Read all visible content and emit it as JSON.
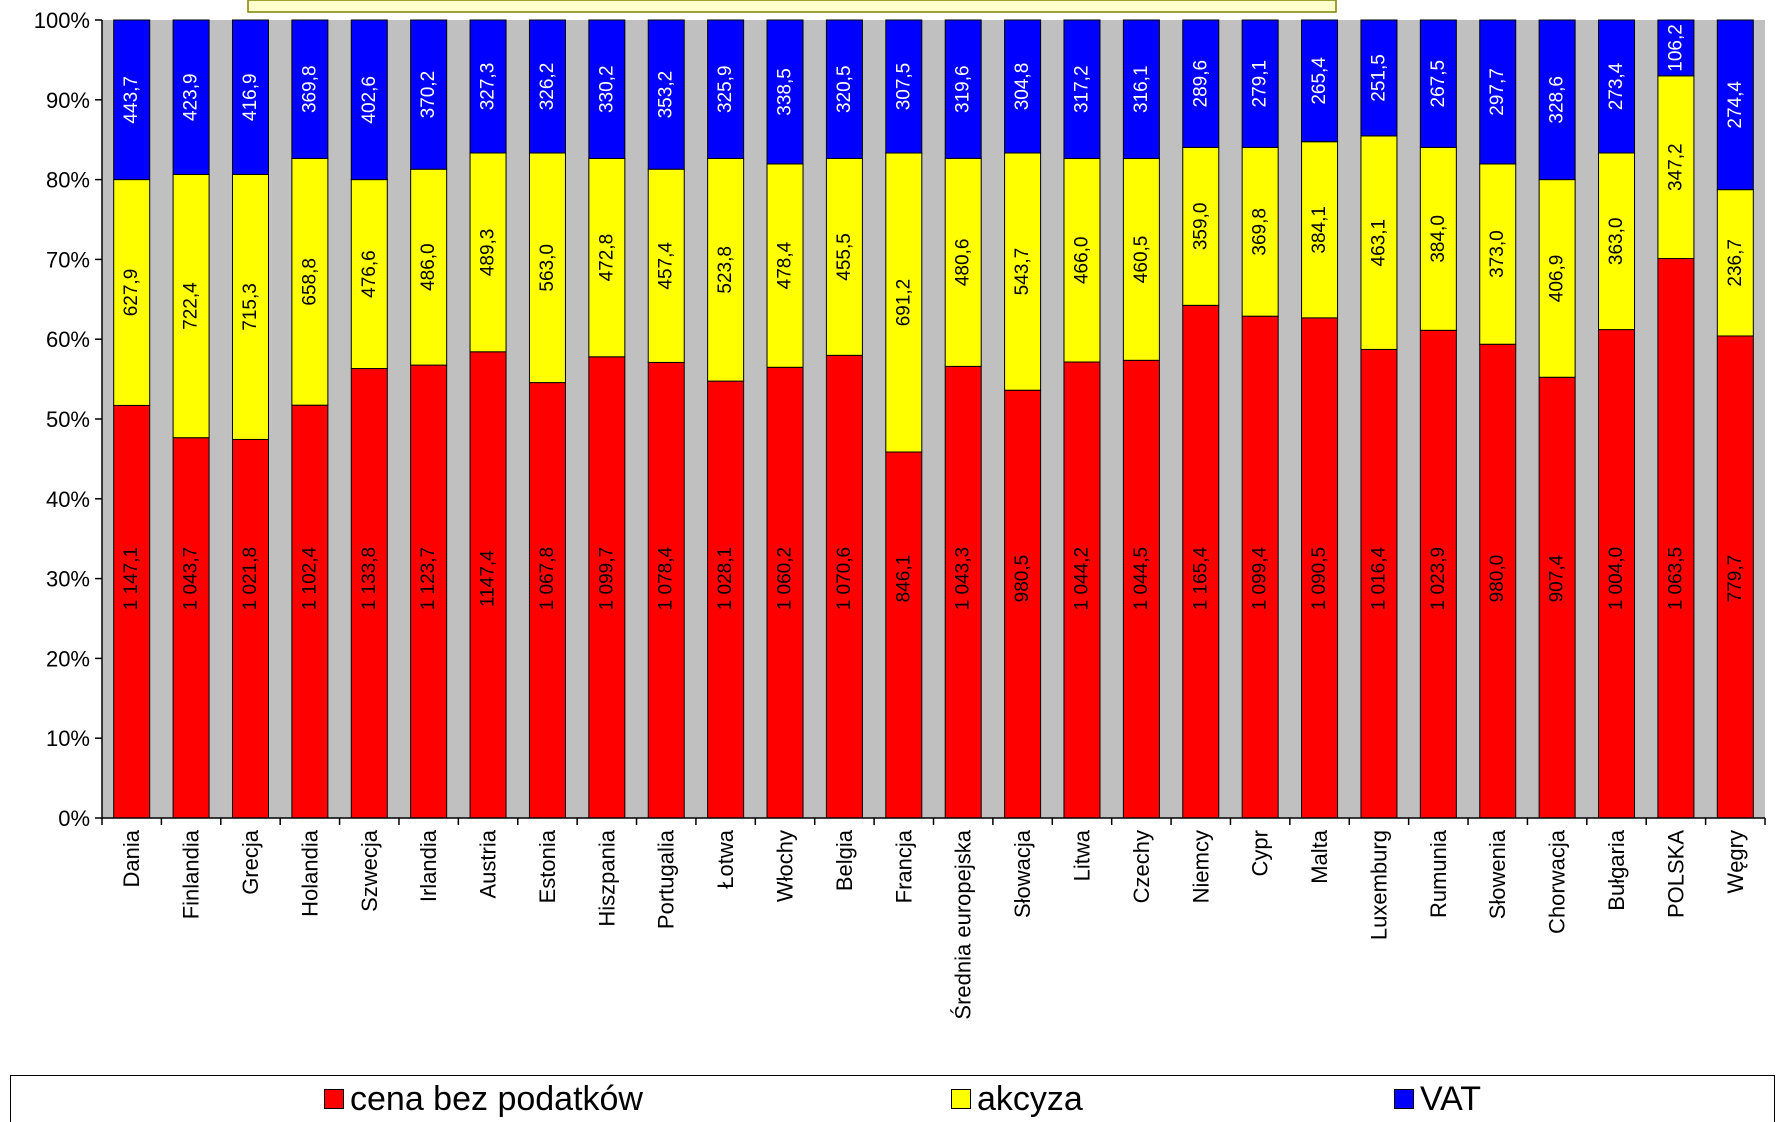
{
  "chart_data": {
    "type": "bar",
    "stacked": true,
    "normalized": "percent",
    "categories": [
      "Dania",
      "Finlandia",
      "Grecja",
      "Holandia",
      "Szwecja",
      "Irlandia",
      "Austria",
      "Estonia",
      "Hiszpania",
      "Portugalia",
      "Łotwa",
      "Włochy",
      "Belgia",
      "Francja",
      "Średnia europejska",
      "Słowacja",
      "Litwa",
      "Czechy",
      "Niemcy",
      "Cypr",
      "Malta",
      "Luxemburg",
      "Rumunia",
      "Słowenia",
      "Chorwacja",
      "Bułgaria",
      "POLSKA",
      "Węgry"
    ],
    "series": [
      {
        "name": "cena bez podatków",
        "color": "#ff0000",
        "values": [
          1147.1,
          1043.7,
          1021.8,
          1102.4,
          1133.8,
          1123.7,
          1147.4,
          1067.8,
          1099.7,
          1078.4,
          1028.1,
          1060.2,
          1070.6,
          846.1,
          1043.3,
          980.5,
          1044.2,
          1044.5,
          1165.4,
          1099.4,
          1090.5,
          1016.4,
          1023.9,
          980.0,
          907.4,
          1004.0,
          1063.5,
          779.7
        ],
        "labels": [
          "1 147,1",
          "1 043,7",
          "1 021,8",
          "1 102,4",
          "1 133,8",
          "1 123,7",
          "1147,4",
          "1 067,8",
          "1 099,7",
          "1 078,4",
          "1 028,1",
          "1 060,2",
          "1 070,6",
          "846,1",
          "1 043,3",
          "980,5",
          "1 044,2",
          "1 044,5",
          "1 165,4",
          "1 099,4",
          "1 090,5",
          "1 016,4",
          "1 023,9",
          "980,0",
          "907,4",
          "1 004,0",
          "1 063,5",
          "779,7"
        ]
      },
      {
        "name": "akcyza",
        "color": "#ffff00",
        "values": [
          627.9,
          722.4,
          715.3,
          658.8,
          476.6,
          486.0,
          489.3,
          563.0,
          472.8,
          457.4,
          523.8,
          478.4,
          455.5,
          691.2,
          480.6,
          543.7,
          466.0,
          460.5,
          359.0,
          369.8,
          384.1,
          463.1,
          384.0,
          373.0,
          406.9,
          363.0,
          347.2,
          236.7
        ],
        "labels": [
          "627,9",
          "722,4",
          "715,3",
          "658,8",
          "476,6",
          "486,0",
          "489,3",
          "563,0",
          "472,8",
          "457,4",
          "523,8",
          "478,4",
          "455,5",
          "691,2",
          "480,6",
          "543,7",
          "466,0",
          "460,5",
          "359,0",
          "369,8",
          "384,1",
          "463,1",
          "384,0",
          "373,0",
          "406,9",
          "363,0",
          "347,2",
          "236,7"
        ]
      },
      {
        "name": "VAT",
        "color": "#0000ff",
        "values": [
          443.7,
          423.9,
          416.9,
          369.8,
          402.6,
          370.2,
          327.3,
          326.2,
          330.2,
          353.2,
          325.9,
          338.5,
          320.5,
          307.5,
          319.6,
          304.8,
          317.2,
          316.1,
          289.6,
          279.1,
          265.4,
          251.5,
          267.5,
          297.7,
          328.6,
          273.4,
          106.2,
          274.4
        ],
        "labels": [
          "443,7",
          "423,9",
          "416,9",
          "369,8",
          "402,6",
          "370,2",
          "327,3",
          "326,2",
          "330,2",
          "353,2",
          "325,9",
          "338,5",
          "320,5",
          "307,5",
          "319,6",
          "304,8",
          "317,2",
          "316,1",
          "289,6",
          "279,1",
          "265,4",
          "251,5",
          "267,5",
          "297,7",
          "328,6",
          "273,4",
          "106,2",
          "274,4"
        ]
      }
    ],
    "y_ticks": [
      "0%",
      "10%",
      "20%",
      "30%",
      "40%",
      "50%",
      "60%",
      "70%",
      "80%",
      "90%",
      "100%"
    ],
    "ylim": [
      0,
      100
    ],
    "grid": false,
    "plot_background": "#c0c0c0",
    "legend_position": "bottom"
  },
  "legend": {
    "items": [
      {
        "label": "cena bez podatków",
        "color": "#ff0000"
      },
      {
        "label": "akcyza",
        "color": "#ffff00"
      },
      {
        "label": "VAT",
        "color": "#0000ff"
      }
    ]
  }
}
